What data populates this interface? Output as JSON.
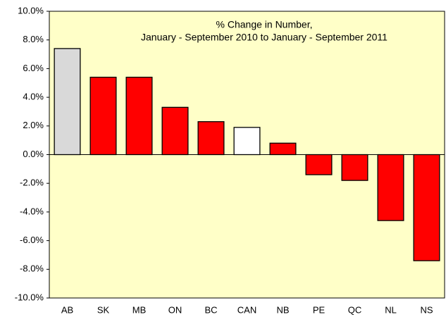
{
  "chart_data": {
    "type": "bar",
    "title": [
      "% Change in Number,",
      "January - September 2010 to January - September 2011"
    ],
    "categories": [
      "AB",
      "SK",
      "MB",
      "ON",
      "BC",
      "CAN",
      "NB",
      "PE",
      "QC",
      "NL",
      "NS"
    ],
    "values": [
      7.4,
      5.4,
      5.4,
      3.3,
      2.3,
      1.9,
      0.8,
      -1.4,
      -1.8,
      -4.6,
      -7.4
    ],
    "colors": [
      "#d9d9d9",
      "#ff0000",
      "#ff0000",
      "#ff0000",
      "#ff0000",
      "#ffffff",
      "#ff0000",
      "#ff0000",
      "#ff0000",
      "#ff0000",
      "#ff0000"
    ],
    "ylim": [
      -10,
      10
    ],
    "yticks": [
      {
        "value": -10,
        "label": "-10.0%"
      },
      {
        "value": -8,
        "label": "-8.0%"
      },
      {
        "value": -6,
        "label": "-6.0%"
      },
      {
        "value": -4,
        "label": "-4.0%"
      },
      {
        "value": -2,
        "label": "-2.0%"
      },
      {
        "value": 0,
        "label": "0.0%"
      },
      {
        "value": 2,
        "label": "2.0%"
      },
      {
        "value": 4,
        "label": "4.0%"
      },
      {
        "value": 6,
        "label": "6.0%"
      },
      {
        "value": 8,
        "label": "8.0%"
      },
      {
        "value": 10,
        "label": "10.0%"
      }
    ],
    "grid": false
  }
}
